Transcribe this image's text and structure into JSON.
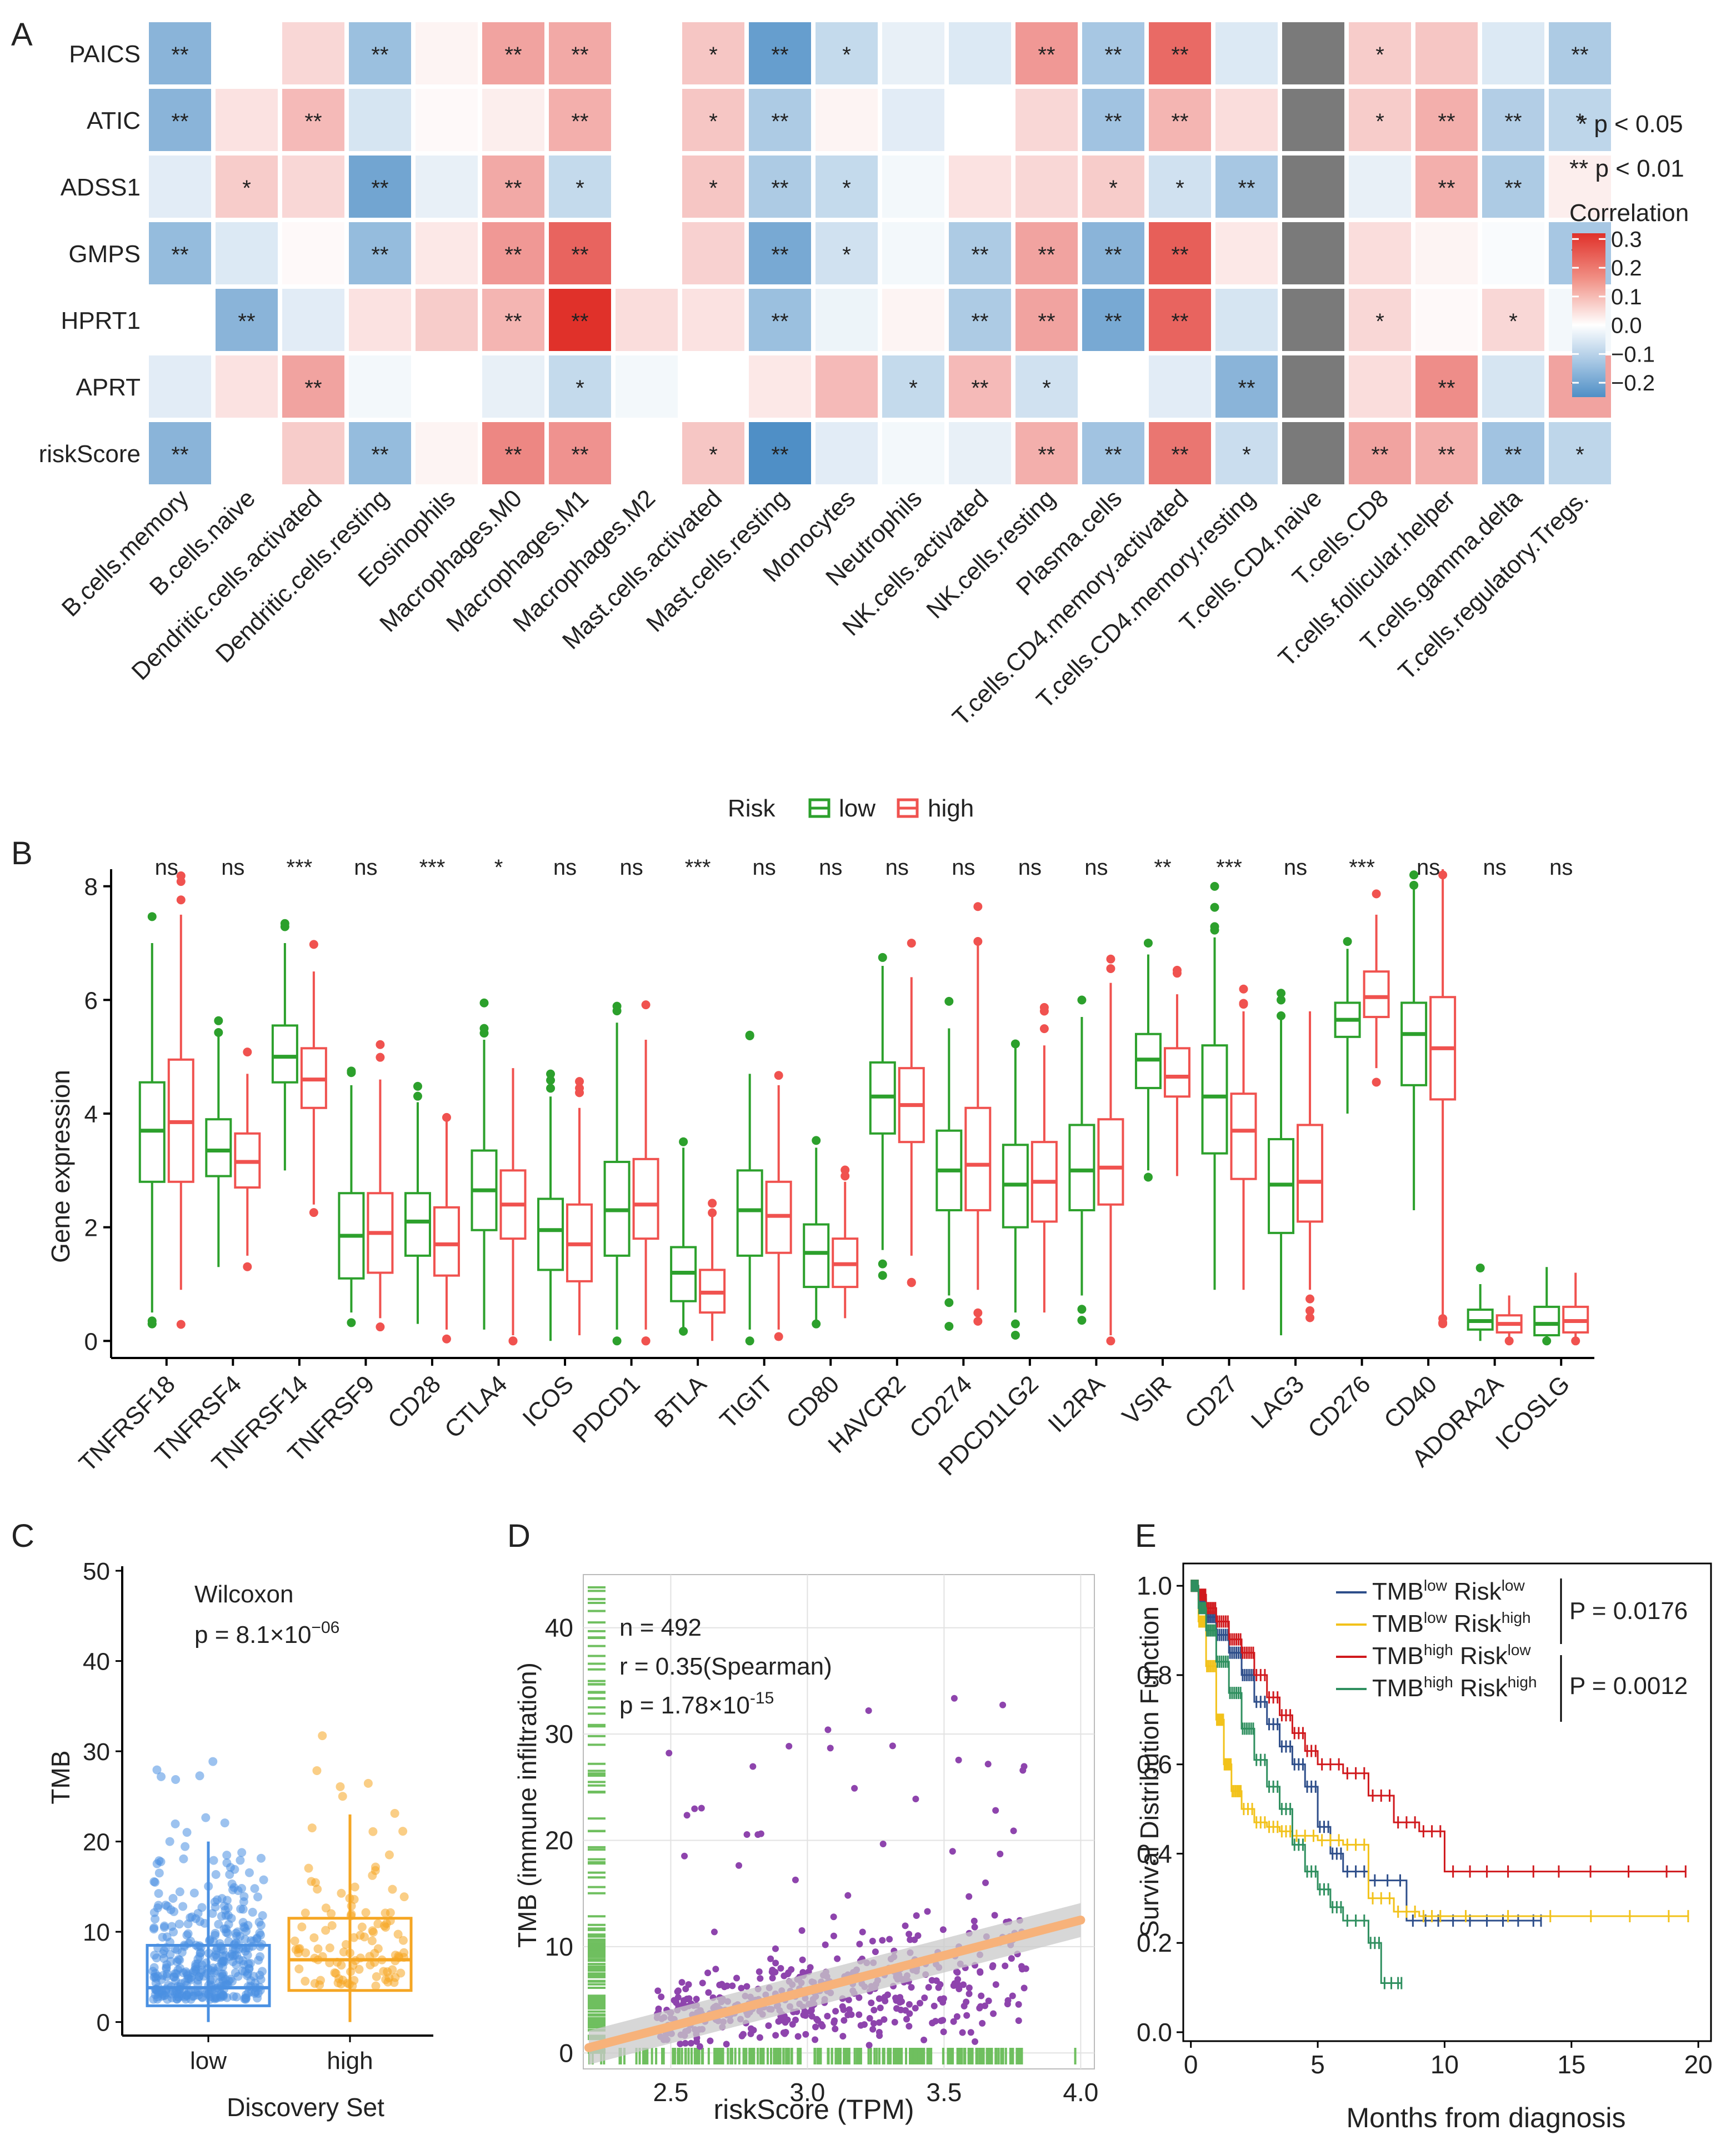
{
  "panel_labels": [
    "A",
    "B",
    "C",
    "D",
    "E"
  ],
  "colors": {
    "neg": "#4f8fc6",
    "pos": "#e0312a",
    "gray": "#7a7a7a",
    "low": "#2ca02c",
    "high": "#f0524f",
    "c_low": "#4a90e2",
    "c_high": "#f5a623",
    "d_point": "#8e44ad",
    "d_rug": "#6fbf5f",
    "d_fit": "#f7b27a",
    "e_lowlow": "#2e4e8a",
    "e_lowhigh": "#f2c21b",
    "e_highlow": "#d0191d",
    "e_highhigh": "#2f8f5f"
  },
  "chart_data": [
    {
      "type": "heatmap",
      "panel": "A",
      "rows": [
        "PAICS",
        "ATIC",
        "ADSS1",
        "GMPS",
        "HPRT1",
        "APRT",
        "riskScore"
      ],
      "columns": [
        "B.cells.memory",
        "B.cells.naive",
        "Dendritic.cells.activated",
        "Dendritic.cells.resting",
        "Eosinophils",
        "Macrophages.M0",
        "Macrophages.M1",
        "Macrophages.M2",
        "Mast.cells.activated",
        "Mast.cells.resting",
        "Monocytes",
        "Neutrophils",
        "NK.cells.activated",
        "NK.cells.resting",
        "Plasma.cells",
        "T.cells.CD4.memory.activated",
        "T.cells.CD4.memory.resting",
        "T.cells.CD4.naive",
        "T.cells.CD8",
        "T.cells.follicular.helper",
        "T.cells.gamma.delta",
        "T.cells.regulatory.Tregs."
      ],
      "values": [
        [
          -0.2,
          0.0,
          0.07,
          -0.17,
          0.02,
          0.16,
          0.15,
          0.0,
          0.1,
          -0.26,
          -0.1,
          -0.04,
          -0.06,
          0.18,
          -0.15,
          0.26,
          -0.06,
          null,
          0.09,
          0.1,
          -0.06,
          -0.14
        ],
        [
          -0.2,
          0.05,
          0.12,
          -0.07,
          0.01,
          0.03,
          0.14,
          0.0,
          0.1,
          -0.14,
          0.02,
          -0.05,
          0.0,
          0.07,
          -0.16,
          0.13,
          0.06,
          null,
          0.09,
          0.14,
          -0.13,
          -0.11
        ],
        [
          -0.05,
          0.09,
          0.07,
          -0.24,
          -0.04,
          0.15,
          -0.1,
          0.0,
          0.1,
          -0.14,
          -0.1,
          -0.02,
          0.05,
          0.07,
          0.09,
          -0.08,
          -0.15,
          null,
          -0.04,
          0.14,
          -0.14,
          0.03
        ],
        [
          -0.18,
          -0.06,
          0.01,
          -0.18,
          0.04,
          0.18,
          0.27,
          0.0,
          0.08,
          -0.23,
          -0.08,
          -0.02,
          -0.14,
          0.16,
          -0.2,
          0.28,
          0.04,
          null,
          0.06,
          0.02,
          -0.01,
          -0.15
        ],
        [
          0.0,
          -0.2,
          -0.05,
          0.05,
          0.09,
          0.13,
          0.36,
          0.06,
          0.05,
          -0.17,
          -0.03,
          0.02,
          -0.14,
          0.16,
          -0.23,
          0.27,
          -0.07,
          null,
          0.07,
          0.01,
          0.07,
          -0.02
        ],
        [
          -0.05,
          0.05,
          0.16,
          -0.02,
          0.0,
          -0.04,
          -0.1,
          -0.02,
          0.0,
          0.04,
          0.12,
          -0.1,
          0.12,
          -0.08,
          0.0,
          -0.05,
          -0.2,
          null,
          0.06,
          0.2,
          -0.07,
          0.16
        ],
        [
          -0.2,
          0.0,
          0.09,
          -0.18,
          0.02,
          0.21,
          0.19,
          0.0,
          0.1,
          -0.31,
          -0.05,
          -0.02,
          -0.04,
          0.14,
          -0.16,
          0.24,
          -0.09,
          null,
          0.16,
          0.14,
          -0.16,
          -0.11
        ]
      ],
      "sig": [
        [
          "**",
          "",
          "",
          "**",
          "",
          "**",
          "**",
          "",
          "*",
          "**",
          "*",
          "",
          "",
          "**",
          "**",
          "**",
          "",
          "",
          "*",
          "",
          "",
          "**"
        ],
        [
          "**",
          "",
          "**",
          "",
          "",
          "",
          "**",
          "",
          "*",
          "**",
          "",
          "",
          "",
          "",
          "**",
          "**",
          "",
          "",
          "*",
          "**",
          "**",
          "*"
        ],
        [
          "",
          "*",
          "",
          "**",
          "",
          "**",
          "*",
          "",
          "*",
          "**",
          "*",
          "",
          "",
          "",
          "*",
          "*",
          "**",
          "",
          "",
          "**",
          "**",
          ""
        ],
        [
          "**",
          "",
          "",
          "**",
          "",
          "**",
          "**",
          "",
          "",
          "**",
          "*",
          "",
          "**",
          "**",
          "**",
          "**",
          "",
          "",
          "",
          "",
          "",
          "**"
        ],
        [
          "",
          "**",
          "",
          "",
          "",
          "**",
          "**",
          "",
          "",
          "**",
          "",
          "",
          "**",
          "**",
          "**",
          "**",
          "",
          "",
          "*",
          "",
          "*",
          ""
        ],
        [
          "",
          "",
          "**",
          "",
          "",
          "",
          "*",
          "",
          "",
          "",
          "",
          "*",
          "**",
          "*",
          "",
          "",
          "**",
          "",
          "",
          "**",
          "",
          "**"
        ],
        [
          "**",
          "",
          "",
          "**",
          "",
          "**",
          "**",
          "",
          "*",
          "**",
          "",
          "",
          "",
          "**",
          "**",
          "**",
          "*",
          "",
          "**",
          "**",
          "**",
          "*"
        ]
      ],
      "legend": {
        "p1": "* p < 0.05",
        "p2": "** p < 0.01",
        "title": "Correlation",
        "ticks": [
          "0.3",
          "0.2",
          "0.1",
          "0.0",
          "−0.1",
          "−0.2"
        ],
        "tick_values": [
          0.3,
          0.2,
          0.1,
          0.0,
          -0.1,
          -0.2
        ],
        "range": [
          -0.25,
          0.32
        ]
      }
    },
    {
      "type": "box",
      "panel": "B",
      "legend_title": "Risk",
      "legend_items": [
        "low",
        "high"
      ],
      "ylabel": "Gene expression",
      "yticks": [
        0,
        2,
        4,
        6,
        8
      ],
      "ylim": [
        -0.3,
        8.3
      ],
      "categories": [
        "TNFRSF18",
        "TNFRSF4",
        "TNFRSF14",
        "TNFRSF9",
        "CD28",
        "CTLA4",
        "ICOS",
        "PDCD1",
        "BTLA",
        "TIGIT",
        "CD80",
        "HAVCR2",
        "CD274",
        "PDCD1LG2",
        "IL2RA",
        "VSIR",
        "CD27",
        "LAG3",
        "CD276",
        "CD40",
        "ADORA2A",
        "ICOSLG"
      ],
      "sig": [
        "ns",
        "ns",
        "***",
        "ns",
        "***",
        "*",
        "ns",
        "ns",
        "***",
        "ns",
        "ns",
        "ns",
        "ns",
        "ns",
        "ns",
        "**",
        "***",
        "ns",
        "***",
        "ns",
        "ns",
        "ns"
      ],
      "low": [
        [
          0.5,
          2.8,
          3.7,
          4.55,
          7.0
        ],
        [
          1.3,
          2.9,
          3.35,
          3.9,
          5.4
        ],
        [
          3.0,
          4.55,
          5.0,
          5.55,
          7.0
        ],
        [
          0.5,
          1.1,
          1.85,
          2.6,
          4.5
        ],
        [
          0.3,
          1.5,
          2.1,
          2.6,
          4.2
        ],
        [
          0.2,
          1.95,
          2.65,
          3.35,
          5.3
        ],
        [
          0.0,
          1.25,
          1.95,
          2.5,
          4.3
        ],
        [
          0.2,
          1.5,
          2.3,
          3.15,
          5.6
        ],
        [
          0.2,
          0.7,
          1.2,
          1.65,
          3.4
        ],
        [
          0.2,
          1.5,
          2.3,
          3.0,
          4.7
        ],
        [
          0.3,
          0.95,
          1.55,
          2.05,
          3.4
        ],
        [
          1.6,
          3.65,
          4.3,
          4.9,
          6.6
        ],
        [
          0.8,
          2.3,
          3.0,
          3.7,
          5.5
        ],
        [
          0.5,
          2.0,
          2.75,
          3.45,
          5.2
        ],
        [
          0.8,
          2.3,
          3.0,
          3.8,
          5.7
        ],
        [
          3.0,
          4.45,
          4.95,
          5.4,
          6.8
        ],
        [
          0.9,
          3.3,
          4.3,
          5.2,
          7.1
        ],
        [
          0.1,
          1.9,
          2.75,
          3.55,
          5.7
        ],
        [
          4.0,
          5.35,
          5.65,
          5.95,
          6.9
        ],
        [
          2.3,
          4.5,
          5.4,
          5.95,
          8.0
        ],
        [
          0.0,
          0.2,
          0.35,
          0.55,
          1.0
        ],
        [
          0.0,
          0.1,
          0.3,
          0.6,
          1.3
        ]
      ],
      "high": [
        [
          0.9,
          2.8,
          3.85,
          4.95,
          7.5
        ],
        [
          1.5,
          2.7,
          3.15,
          3.65,
          4.7
        ],
        [
          2.4,
          4.1,
          4.6,
          5.15,
          6.5
        ],
        [
          0.4,
          1.2,
          1.9,
          2.6,
          4.6
        ],
        [
          0.2,
          1.15,
          1.7,
          2.35,
          3.9
        ],
        [
          0.1,
          1.8,
          2.4,
          3.0,
          4.8
        ],
        [
          0.1,
          1.05,
          1.7,
          2.4,
          4.1
        ],
        [
          0.2,
          1.8,
          2.4,
          3.2,
          5.3
        ],
        [
          0.0,
          0.5,
          0.85,
          1.25,
          2.2
        ],
        [
          0.2,
          1.55,
          2.2,
          2.8,
          4.5
        ],
        [
          0.4,
          0.95,
          1.35,
          1.8,
          2.8
        ],
        [
          1.5,
          3.5,
          4.15,
          4.8,
          6.4
        ],
        [
          0.9,
          2.3,
          3.1,
          4.1,
          7.0
        ],
        [
          0.5,
          2.1,
          2.8,
          3.5,
          5.2
        ],
        [
          0.1,
          2.4,
          3.05,
          3.9,
          6.3
        ],
        [
          2.9,
          4.3,
          4.65,
          5.15,
          6.1
        ],
        [
          0.9,
          2.85,
          3.7,
          4.35,
          5.8
        ],
        [
          0.9,
          2.1,
          2.8,
          3.8,
          5.8
        ],
        [
          4.8,
          5.7,
          6.05,
          6.5,
          7.5
        ],
        [
          0.4,
          4.25,
          5.15,
          6.05,
          8.3
        ],
        [
          0.0,
          0.15,
          0.3,
          0.45,
          0.8
        ],
        [
          0.0,
          0.15,
          0.35,
          0.6,
          1.2
        ]
      ]
    },
    {
      "type": "scatter",
      "panel": "C",
      "ylabel": "TMB",
      "xlabel": "Discovery Set",
      "categories": [
        "low",
        "high"
      ],
      "yticks": [
        0,
        10,
        20,
        30,
        40,
        50
      ],
      "ylim": [
        -1.5,
        50.5
      ],
      "stat_title": "Wilcoxon",
      "stat_p": "p = 8.1×10",
      "stat_p_exp": "−06",
      "box_low": [
        0.0,
        1.8,
        3.8,
        8.5,
        20.0
      ],
      "box_high": [
        0.0,
        3.5,
        6.9,
        11.5,
        23.0
      ]
    },
    {
      "type": "scatter",
      "panel": "D",
      "xlabel": "riskScore (TPM)",
      "ylabel": "TMB (immune infiltration)",
      "xticks": [
        "2.5",
        "3.0",
        "3.5",
        "4.0"
      ],
      "xtick_values": [
        2.5,
        3.0,
        3.5,
        4.0
      ],
      "yticks": [
        0,
        10,
        20,
        30,
        40
      ],
      "xlim": [
        2.18,
        4.05
      ],
      "ylim": [
        -1.5,
        45
      ],
      "n_label": "n = 492",
      "r_label": "r = 0.35(Spearman)",
      "p_label": "p = 1.78×10",
      "p_exp": "-15",
      "fit": {
        "x": [
          2.2,
          4.0
        ],
        "y": [
          0.5,
          12.5
        ]
      }
    },
    {
      "type": "line",
      "panel": "E",
      "xlabel": "Months from diagnosis",
      "ylabel": "Survival Distribution Function",
      "xticks": [
        0,
        5,
        10,
        15,
        20
      ],
      "yticks": [
        "0.0",
        "0.2",
        "0.4",
        "0.6",
        "0.8",
        "1.0"
      ],
      "ytick_values": [
        0.0,
        0.2,
        0.4,
        0.6,
        0.8,
        1.0
      ],
      "xlim": [
        -0.3,
        20.5
      ],
      "ylim": [
        -0.02,
        1.05
      ],
      "p1": "P = 0.0176",
      "p2": "P = 0.0012",
      "series": [
        {
          "name": "lowlow",
          "label_a": "TMB",
          "sup_a": "low",
          "label_b": " Risk",
          "sup_b": "low",
          "x": [
            0,
            0.3,
            0.6,
            1.0,
            1.5,
            2.0,
            2.5,
            3.0,
            3.5,
            4.0,
            4.5,
            5.0,
            5.5,
            6.0,
            7.0,
            8.5,
            10,
            12,
            13.8
          ],
          "y": [
            1,
            0.97,
            0.93,
            0.89,
            0.85,
            0.8,
            0.74,
            0.69,
            0.64,
            0.6,
            0.55,
            0.46,
            0.4,
            0.36,
            0.34,
            0.25,
            0.25,
            0.25,
            0.25
          ]
        },
        {
          "name": "lowhigh",
          "label_a": "TMB",
          "sup_a": "low",
          "label_b": " Risk",
          "sup_b": "high",
          "x": [
            0,
            0.3,
            0.6,
            1.0,
            1.3,
            1.6,
            2.0,
            2.5,
            3.0,
            3.5,
            4.0,
            5.0,
            6.0,
            7.0,
            8.0,
            9.0,
            10,
            15,
            19.6
          ],
          "y": [
            1,
            0.92,
            0.82,
            0.7,
            0.6,
            0.54,
            0.5,
            0.47,
            0.46,
            0.45,
            0.44,
            0.43,
            0.42,
            0.3,
            0.27,
            0.26,
            0.26,
            0.26,
            0.26
          ]
        },
        {
          "name": "highlow",
          "label_a": "TMB",
          "sup_a": "high",
          "label_b": " Risk",
          "sup_b": "low",
          "x": [
            0,
            0.3,
            0.6,
            1.0,
            1.5,
            2.0,
            2.5,
            3.0,
            3.5,
            4.0,
            4.5,
            5.0,
            6.0,
            7.0,
            8.0,
            9.0,
            10.0,
            12.0,
            15.0,
            19.5
          ],
          "y": [
            1,
            0.98,
            0.95,
            0.92,
            0.88,
            0.85,
            0.8,
            0.75,
            0.71,
            0.67,
            0.63,
            0.6,
            0.58,
            0.53,
            0.47,
            0.45,
            0.36,
            0.36,
            0.36,
            0.36
          ]
        },
        {
          "name": "highhigh",
          "label_a": "TMB",
          "sup_a": "high",
          "label_b": " Risk",
          "sup_b": "high",
          "x": [
            0,
            0.3,
            0.6,
            1.0,
            1.5,
            2.0,
            2.5,
            3.0,
            3.5,
            4.0,
            4.5,
            5.0,
            5.5,
            6.0,
            7.0,
            7.5,
            8.3
          ],
          "y": [
            1,
            0.95,
            0.9,
            0.83,
            0.76,
            0.68,
            0.61,
            0.55,
            0.5,
            0.42,
            0.36,
            0.32,
            0.28,
            0.25,
            0.2,
            0.11,
            0.11
          ]
        }
      ]
    }
  ]
}
